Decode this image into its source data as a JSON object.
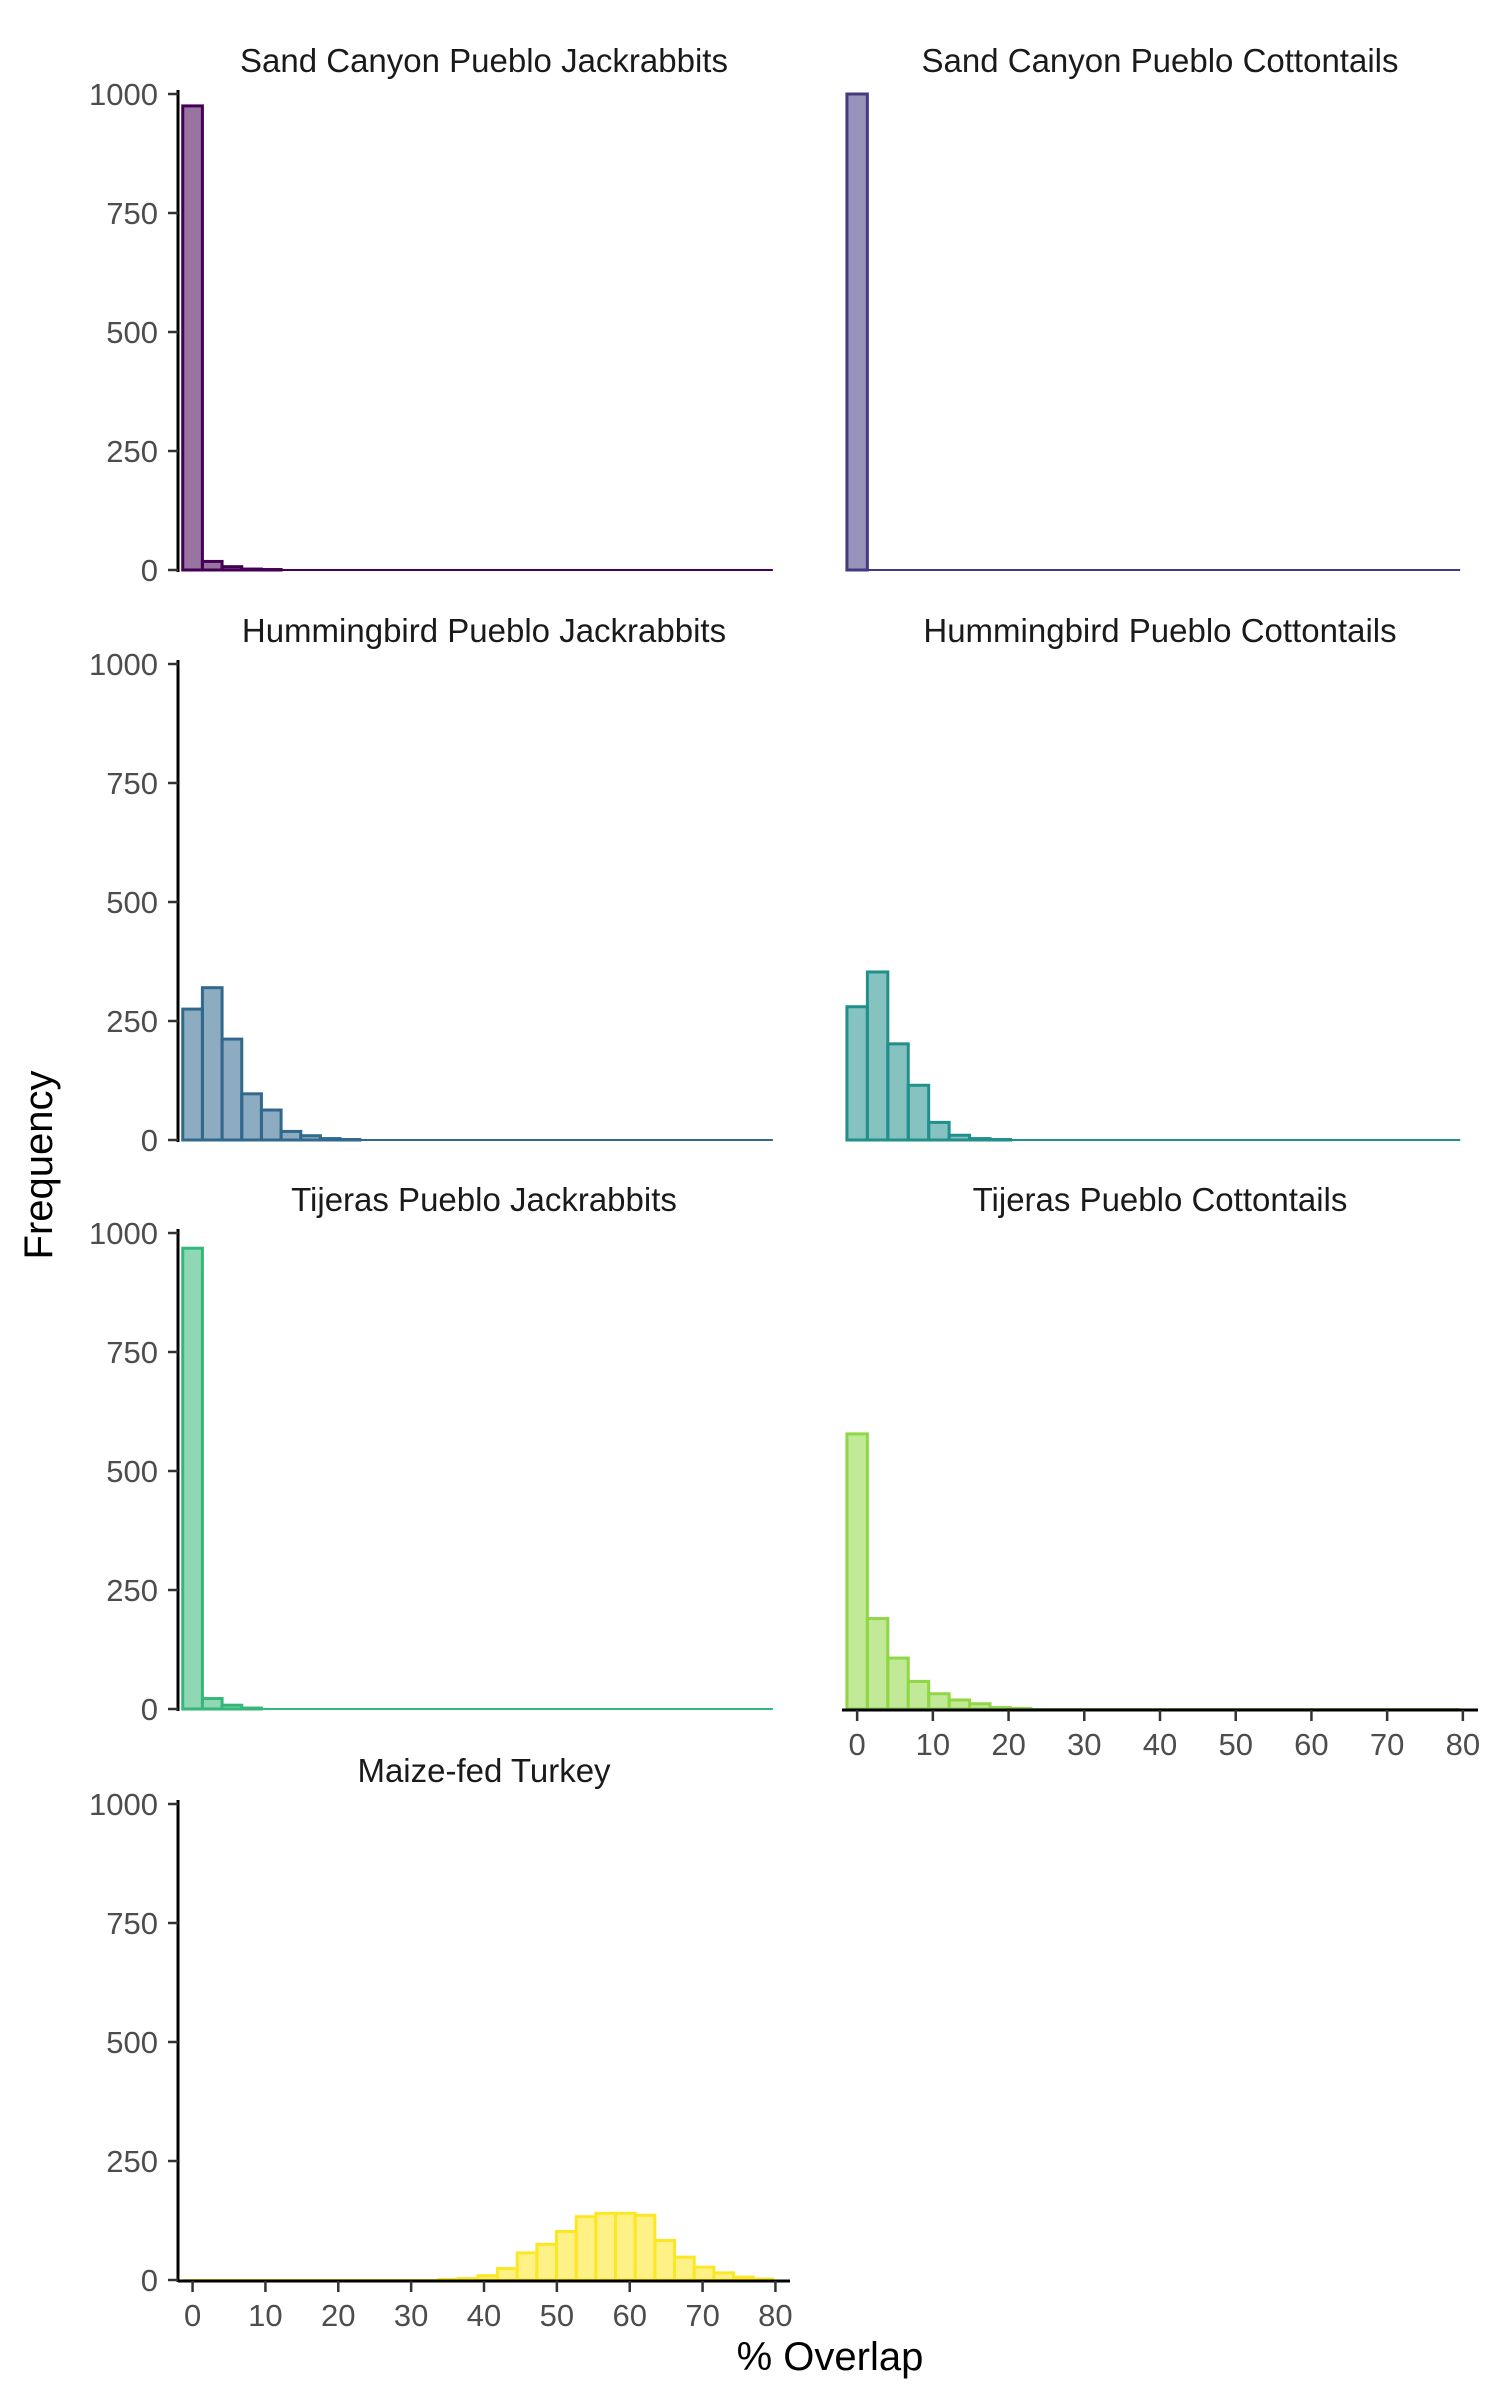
{
  "chart_data": {
    "type": "bar",
    "xlabel": "% Overlap",
    "ylabel": "Frequency",
    "xlim": [
      -2,
      82
    ],
    "ylim": [
      0,
      1000
    ],
    "x_ticks": [
      "0",
      "10",
      "20",
      "30",
      "40",
      "50",
      "60",
      "70",
      "80"
    ],
    "y_ticks": [
      "0",
      "250",
      "500",
      "750",
      "1000"
    ],
    "bin_width": 2.7,
    "bin_start": -1.35,
    "panels": [
      {
        "title": "Sand Canyon Pueblo Jackrabbits",
        "color": "#440154",
        "values": [
          975,
          18,
          7,
          2,
          1,
          0,
          0,
          0,
          0,
          0,
          0,
          0,
          0,
          0,
          0,
          0,
          0,
          0,
          0,
          0,
          0,
          0,
          0,
          0,
          0,
          0,
          0,
          0,
          0,
          0
        ]
      },
      {
        "title": "Sand Canyon Pueblo Cottontails",
        "color": "#443A83",
        "values": [
          1000,
          0,
          0,
          0,
          0,
          0,
          0,
          0,
          0,
          0,
          0,
          0,
          0,
          0,
          0,
          0,
          0,
          0,
          0,
          0,
          0,
          0,
          0,
          0,
          0,
          0,
          0,
          0,
          0,
          0
        ]
      },
      {
        "title": "Hummingbird Pueblo Jackrabbits",
        "color": "#31688E",
        "values": [
          275,
          320,
          212,
          97,
          63,
          18,
          9,
          3,
          1,
          0,
          0,
          0,
          0,
          0,
          0,
          0,
          0,
          0,
          0,
          0,
          0,
          0,
          0,
          0,
          0,
          0,
          0,
          0,
          0,
          0
        ]
      },
      {
        "title": "Hummingbird Pueblo Cottontails",
        "color": "#21908C",
        "values": [
          280,
          353,
          202,
          115,
          37,
          10,
          3,
          1,
          0,
          0,
          0,
          0,
          0,
          0,
          0,
          0,
          0,
          0,
          0,
          0,
          0,
          0,
          0,
          0,
          0,
          0,
          0,
          0,
          0,
          0
        ]
      },
      {
        "title": "Tijeras Pueblo Jackrabbits",
        "color": "#35B779",
        "values": [
          968,
          22,
          8,
          2,
          0,
          0,
          0,
          0,
          0,
          0,
          0,
          0,
          0,
          0,
          0,
          0,
          0,
          0,
          0,
          0,
          0,
          0,
          0,
          0,
          0,
          0,
          0,
          0,
          0,
          0
        ]
      },
      {
        "title": "Tijeras Pueblo Cottontails",
        "color": "#8FD744",
        "values": [
          578,
          190,
          107,
          58,
          32,
          19,
          11,
          3,
          1,
          0,
          0,
          0,
          0,
          0,
          0,
          0,
          0,
          0,
          0,
          0,
          0,
          0,
          0,
          0,
          0,
          0,
          0,
          0,
          0,
          0
        ]
      },
      {
        "title": "Maize-fed Turkey",
        "color": "#FDE725",
        "values": [
          0,
          0,
          0,
          0,
          0,
          0,
          0,
          0,
          0,
          0,
          0,
          0,
          0,
          1,
          3,
          9,
          24,
          57,
          75,
          102,
          133,
          140,
          140,
          136,
          83,
          48,
          27,
          15,
          6,
          2
        ]
      }
    ]
  }
}
